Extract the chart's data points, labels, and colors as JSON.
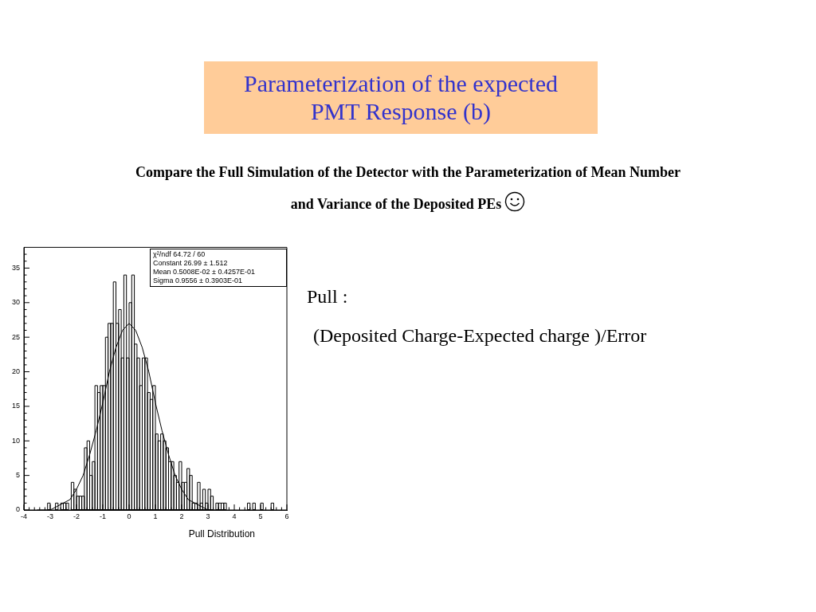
{
  "chart_data": {
    "type": "histogram",
    "title": "Parameterization of the expected PMT Response (b)",
    "subtitle": "Compare the Full Simulation of the Detector with the Parameterization of Mean Number and Variance of the Deposited PEs",
    "xlabel": "Pull Distribution",
    "annotations": [
      "χ²/ndf 64.72 / 60",
      "Constant 26.99 ± 1.512",
      "Mean 0.5008E-02 ± 0.4257E-01",
      "Sigma 0.9556 ± 0.3903E-01",
      "Pull :",
      "(Deposited Charge-Expected charge )/Error"
    ],
    "bins": [
      -4,
      -3.9,
      -3.8,
      -3.7,
      -3.6,
      -3.5,
      -3.4,
      -3.3,
      -3.2,
      -3.1,
      -3,
      -2.9,
      -2.8,
      -2.7,
      -2.6,
      -2.5,
      -2.4,
      -2.3,
      -2.2,
      -2.1,
      -2,
      -1.9,
      -1.8,
      -1.7,
      -1.6,
      -1.5,
      -1.4,
      -1.3,
      -1.2,
      -1.1,
      -1,
      -0.9,
      -0.8,
      -0.7,
      -0.6,
      -0.5,
      -0.4,
      -0.3,
      -0.2,
      -0.1,
      0,
      0.1,
      0.2,
      0.3,
      0.4,
      0.5,
      0.6,
      0.7,
      0.8,
      0.9,
      1,
      1.1,
      1.2,
      1.3,
      1.4,
      1.5,
      1.6,
      1.7,
      1.8,
      1.9,
      2,
      2.1,
      2.2,
      2.3,
      2.4,
      2.5,
      2.6,
      2.7,
      2.8,
      2.9,
      3,
      3.1,
      3.2,
      3.3,
      3.4,
      3.5,
      3.6,
      3.7,
      3.8,
      3.9,
      4,
      4.1,
      4.2,
      4.3,
      4.4,
      4.5,
      4.6,
      4.7,
      4.8,
      4.9,
      5,
      5.1,
      5.2,
      5.3,
      5.4,
      5.5,
      5.6,
      5.7,
      5.8,
      5.9,
      6
    ],
    "series": [
      {
        "color": "#000000",
        "values": [
          0,
          0,
          0,
          0,
          0,
          0,
          0,
          0,
          0,
          1,
          0,
          0,
          1,
          0,
          1,
          1,
          1,
          0,
          4,
          3,
          2,
          2,
          2,
          9,
          10,
          5,
          7,
          18,
          17,
          18,
          18,
          25,
          27,
          27,
          33,
          27,
          29,
          22,
          34,
          22,
          30,
          34,
          24,
          22,
          18,
          22,
          22,
          17,
          16,
          18,
          11,
          10,
          11,
          10,
          9,
          7,
          7,
          5,
          4,
          7,
          4,
          4,
          6,
          5,
          1,
          1,
          4,
          1,
          3,
          1,
          3,
          2,
          0,
          1,
          1,
          1,
          1,
          0,
          0,
          0,
          0,
          0,
          0,
          0,
          0,
          1,
          0,
          1,
          0,
          0,
          1,
          0,
          0,
          0,
          1,
          0,
          0,
          0,
          0,
          0
        ]
      },
      {
        "type": "line",
        "color": "#000000",
        "x": [
          -3.5,
          -3.25,
          -3,
          -2.75,
          -2.5,
          -2.25,
          -2,
          -1.75,
          -1.5,
          -1.25,
          -1,
          -0.75,
          -0.5,
          -0.25,
          0,
          0.25,
          0.5,
          0.75,
          1,
          1.25,
          1.5,
          1.75,
          2,
          2.25,
          2.5,
          2.75,
          3,
          3.25,
          3.5
        ],
        "values": [
          0,
          0,
          0,
          0.5,
          1,
          1.5,
          3,
          5,
          8,
          11.5,
          15.5,
          20,
          23.5,
          26,
          27,
          26,
          23.5,
          20,
          15.5,
          11.5,
          8,
          5,
          3,
          1.5,
          1,
          0.5,
          0,
          0,
          0
        ]
      }
    ],
    "xlim": [
      -4,
      6
    ],
    "xticks": [
      -4,
      {
        "value": -3.8,
        "label": null
      },
      {
        "value": -3.6,
        "label": null
      },
      {
        "value": -3.4,
        "label": null
      },
      {
        "value": -3.2,
        "label": null
      },
      -3,
      {
        "value": -2.8,
        "label": null
      },
      {
        "value": -2.6,
        "label": null
      },
      {
        "value": -2.4,
        "label": null
      },
      {
        "value": -2.2,
        "label": null
      },
      -2,
      {
        "value": -1.8,
        "label": null
      },
      {
        "value": -1.6,
        "label": null
      },
      {
        "value": -1.4,
        "label": null
      },
      {
        "value": -1.2,
        "label": null
      },
      -1,
      {
        "value": -0.8,
        "label": null
      },
      {
        "value": -0.6,
        "label": null
      },
      {
        "value": -0.4,
        "label": null
      },
      {
        "value": -0.2,
        "label": null
      },
      0,
      {
        "value": 0.2,
        "label": null
      },
      {
        "value": 0.4,
        "label": null
      },
      {
        "value": 0.6,
        "label": null
      },
      {
        "value": 0.8,
        "label": null
      },
      1,
      {
        "value": 1.2,
        "label": null
      },
      {
        "value": 1.4,
        "label": null
      },
      {
        "value": 1.6,
        "label": null
      },
      {
        "value": 1.8,
        "label": null
      },
      2,
      {
        "value": 2.2,
        "label": null
      },
      {
        "value": 2.4,
        "label": null
      },
      {
        "value": 2.6,
        "label": null
      },
      {
        "value": 2.8,
        "label": null
      },
      3,
      {
        "value": 3.2,
        "label": null
      },
      {
        "value": 3.4,
        "label": null
      },
      {
        "value": 3.6,
        "label": null
      },
      {
        "value": 3.8,
        "label": null
      },
      4,
      {
        "value": 4.2,
        "label": null
      },
      {
        "value": 4.4,
        "label": null
      },
      {
        "value": 4.6,
        "label": null
      },
      {
        "value": 4.8,
        "label": null
      },
      5,
      {
        "value": 5.2,
        "label": null
      },
      {
        "value": 5.4,
        "label": null
      },
      {
        "value": 5.6,
        "label": null
      },
      {
        "value": 5.8,
        "label": null
      },
      6
    ],
    "ylim": [
      0,
      38
    ],
    "yticks": [
      0,
      {
        "value": 1,
        "label": null
      },
      {
        "value": 2,
        "label": null
      },
      {
        "value": 3,
        "label": null
      },
      {
        "value": 4,
        "label": null
      },
      5,
      {
        "value": 6,
        "label": null
      },
      {
        "value": 7,
        "label": null
      },
      {
        "value": 8,
        "label": null
      },
      {
        "value": 9,
        "label": null
      },
      10,
      {
        "value": 11,
        "label": null
      },
      {
        "value": 12,
        "label": null
      },
      {
        "value": 13,
        "label": null
      },
      {
        "value": 14,
        "label": null
      },
      15,
      {
        "value": 16,
        "label": null
      },
      {
        "value": 17,
        "label": null
      },
      {
        "value": 18,
        "label": null
      },
      {
        "value": 19,
        "label": null
      },
      20,
      {
        "value": 21,
        "label": null
      },
      {
        "value": 22,
        "label": null
      },
      {
        "value": 23,
        "label": null
      },
      {
        "value": 24,
        "label": null
      },
      25,
      {
        "value": 26,
        "label": null
      },
      {
        "value": 27,
        "label": null
      },
      {
        "value": 28,
        "label": null
      },
      {
        "value": 29,
        "label": null
      },
      30,
      {
        "value": 31,
        "label": null
      },
      {
        "value": 32,
        "label": null
      },
      {
        "value": 33,
        "label": null
      },
      {
        "value": 34,
        "label": null
      },
      35,
      {
        "value": 36,
        "label": null
      },
      {
        "value": 37,
        "label": null
      }
    ],
    "grid": false,
    "legend": false
  }
}
